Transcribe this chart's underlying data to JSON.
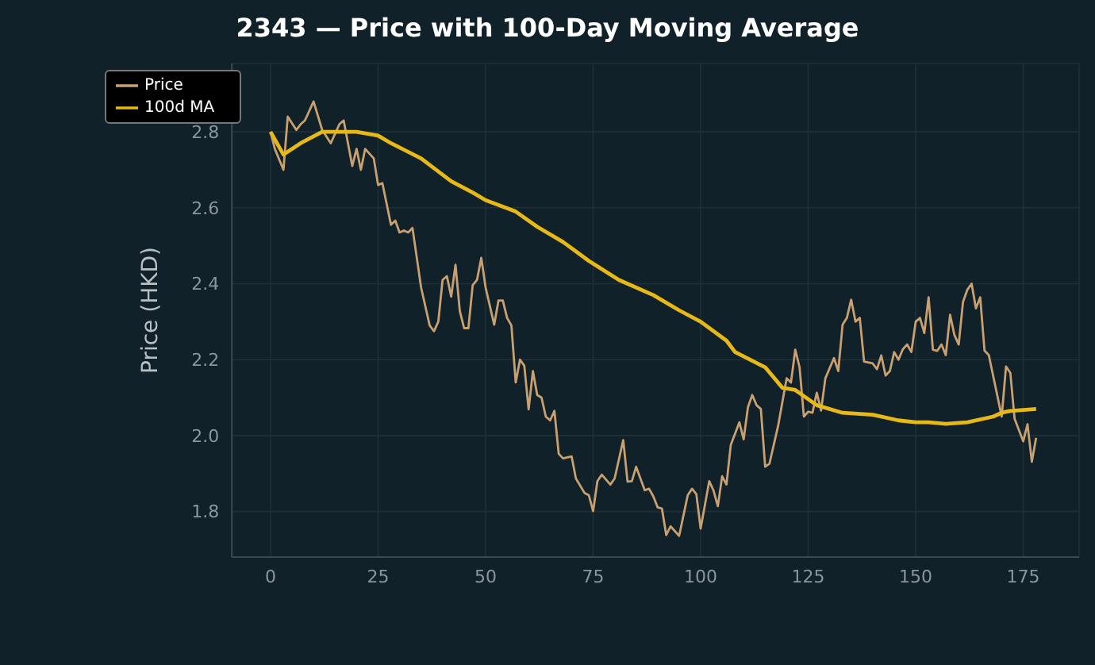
{
  "chart_data": {
    "type": "line",
    "title": "2343 — Price with 100-Day Moving Average",
    "ylabel": "Price (HKD)",
    "xlim": [
      -9,
      188
    ],
    "ylim": [
      1.68,
      2.98
    ],
    "xticks": [
      0,
      25,
      50,
      75,
      100,
      125,
      150,
      175
    ],
    "yticks": [
      1.8,
      {
        "value": 2,
        "label": "2.0"
      },
      2.2,
      2.4,
      2.6,
      2.8
    ],
    "grid": true,
    "legend": "top left",
    "series": [
      {
        "name": "Price",
        "color": "#c9a070",
        "x": [
          0,
          1,
          3,
          4,
          6,
          7,
          8,
          10,
          12,
          14,
          16,
          17,
          19,
          20,
          21,
          22,
          24,
          25,
          26,
          28,
          29,
          30,
          31,
          32,
          33,
          35,
          37,
          38,
          39,
          40,
          41,
          42,
          43,
          44,
          45,
          46,
          47,
          48,
          49,
          50,
          52,
          53,
          54,
          55,
          56,
          57,
          58,
          59,
          60,
          61,
          62,
          63,
          64,
          65,
          66,
          67,
          68,
          70,
          71,
          73,
          74,
          75,
          76,
          77,
          79,
          80,
          82,
          83,
          84,
          85,
          87,
          88,
          89,
          90,
          91,
          92,
          93,
          95,
          97,
          98,
          99,
          100,
          102,
          103,
          104,
          105,
          106,
          107,
          109,
          110,
          111,
          112,
          113,
          114,
          115,
          116,
          118,
          119,
          120,
          121,
          122,
          123,
          124,
          125,
          126,
          127,
          128,
          129,
          131,
          132,
          133,
          134,
          135,
          136,
          137,
          138,
          140,
          141,
          142,
          143,
          144,
          145,
          146,
          147,
          148,
          149,
          150,
          151,
          152,
          153,
          154,
          155,
          156,
          157,
          158,
          159,
          160,
          161,
          162,
          163,
          164,
          165,
          166,
          167,
          170,
          171,
          172,
          173,
          175,
          176,
          177,
          178
        ],
        "values": [
          2.8,
          2.755,
          2.7,
          2.84,
          2.805,
          2.82,
          2.83,
          2.88,
          2.805,
          2.77,
          2.82,
          2.83,
          2.71,
          2.755,
          2.7,
          2.755,
          2.73,
          2.66,
          2.665,
          2.555,
          2.566,
          2.535,
          2.54,
          2.535,
          2.547,
          2.39,
          2.29,
          2.275,
          2.3,
          2.41,
          2.42,
          2.366,
          2.45,
          2.328,
          2.283,
          2.283,
          2.396,
          2.41,
          2.468,
          2.39,
          2.292,
          2.356,
          2.356,
          2.31,
          2.29,
          2.14,
          2.2,
          2.184,
          2.069,
          2.17,
          2.107,
          2.1,
          2.05,
          2.04,
          2.065,
          1.952,
          1.94,
          1.945,
          1.887,
          1.849,
          1.843,
          1.801,
          1.88,
          1.897,
          1.871,
          1.887,
          1.988,
          1.879,
          1.88,
          1.918,
          1.856,
          1.86,
          1.84,
          1.811,
          1.808,
          1.738,
          1.761,
          1.736,
          1.843,
          1.86,
          1.846,
          1.755,
          1.88,
          1.855,
          1.814,
          1.893,
          1.871,
          1.975,
          2.035,
          1.99,
          2.075,
          2.107,
          2.08,
          2.07,
          1.918,
          1.926,
          2.025,
          2.088,
          2.151,
          2.14,
          2.226,
          2.18,
          2.05,
          2.063,
          2.06,
          2.113,
          2.066,
          2.151,
          2.204,
          2.17,
          2.292,
          2.31,
          2.358,
          2.3,
          2.31,
          2.195,
          2.19,
          2.175,
          2.211,
          2.158,
          2.17,
          2.22,
          2.2,
          2.227,
          2.24,
          2.22,
          2.3,
          2.31,
          2.27,
          2.364,
          2.226,
          2.223,
          2.24,
          2.212,
          2.318,
          2.265,
          2.24,
          2.352,
          2.384,
          2.4,
          2.335,
          2.364,
          2.224,
          2.212,
          2.05,
          2.182,
          2.165,
          2.044,
          1.985,
          2.03,
          1.931,
          1.994
        ]
      },
      {
        "name": "100d MA",
        "color": "#e6b818",
        "x": [
          0,
          3,
          7,
          12,
          20,
          25,
          28,
          35,
          42,
          47,
          50,
          57,
          62,
          68,
          74,
          81,
          89,
          95,
          100,
          106,
          108,
          115,
          119,
          122,
          127,
          133,
          140,
          146,
          150,
          153,
          157,
          162,
          168,
          170,
          172,
          178
        ],
        "values": [
          2.8,
          2.74,
          2.77,
          2.8,
          2.8,
          2.79,
          2.77,
          2.73,
          2.67,
          2.64,
          2.62,
          2.59,
          2.55,
          2.51,
          2.46,
          2.41,
          2.37,
          2.33,
          2.3,
          2.25,
          2.22,
          2.18,
          2.126,
          2.12,
          2.08,
          2.06,
          2.055,
          2.04,
          2.035,
          2.035,
          2.031,
          2.035,
          2.05,
          2.06,
          2.065,
          2.07
        ]
      }
    ]
  }
}
